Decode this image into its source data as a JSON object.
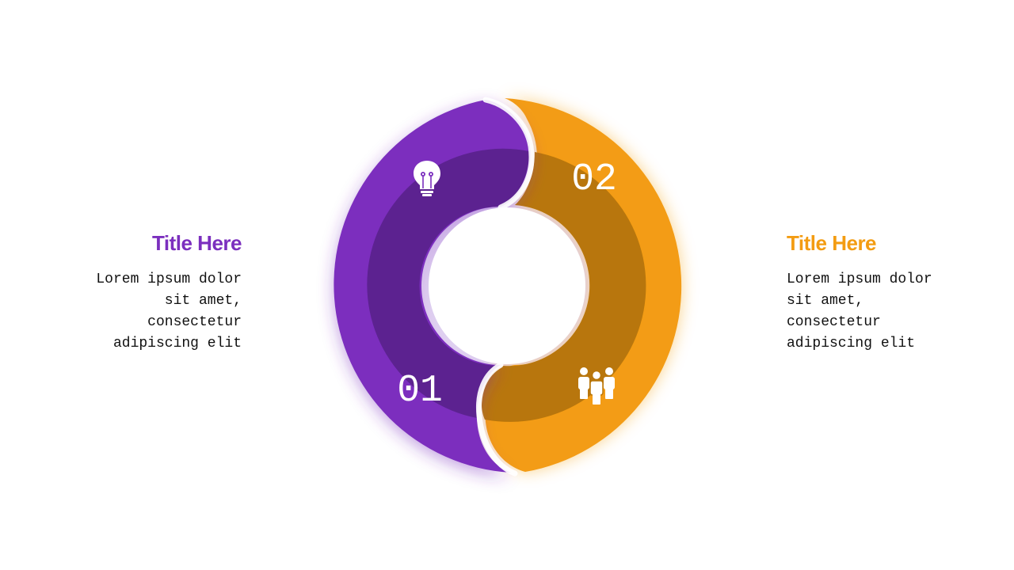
{
  "left_block": {
    "title": "Title Here",
    "body": "Lorem ipsum dolor sit amet, consectetur adipiscing elit"
  },
  "right_block": {
    "title": "Title Here",
    "body": "Lorem ipsum dolor sit amet, consectetur adipiscing elit"
  },
  "segments": [
    {
      "number": "01",
      "icon": "lightbulb-icon",
      "color": "#7B2FBE",
      "inner_color": "#5B2190"
    },
    {
      "number": "02",
      "icon": "people-icon",
      "color": "#F39C12",
      "inner_color": "#B8760A"
    }
  ],
  "colors": {
    "purple": "#7B2FBE",
    "purple_dark": "#5B2190",
    "orange": "#F39C12",
    "orange_dark": "#B8760A"
  }
}
